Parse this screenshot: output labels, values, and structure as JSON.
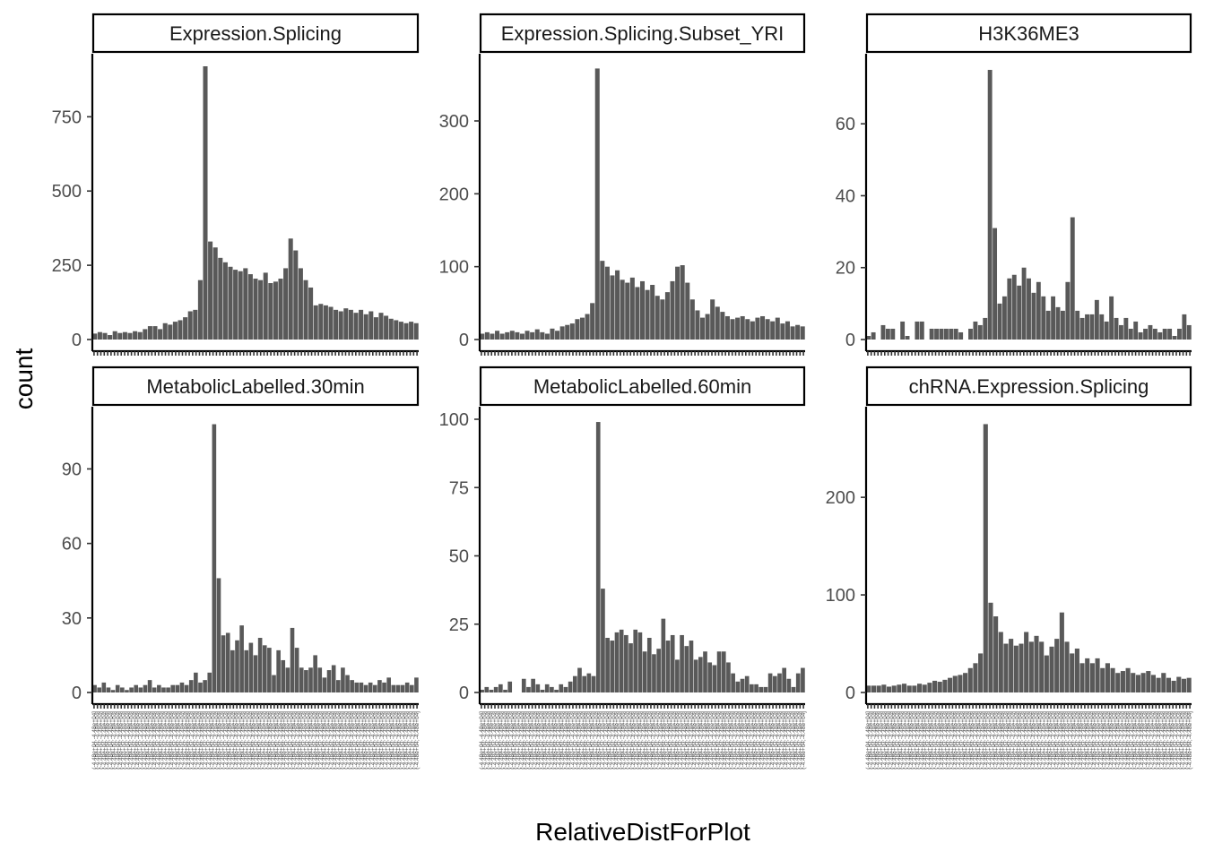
{
  "chart_data": {
    "type": "bar",
    "xlabel": "RelativeDistForPlot",
    "ylabel": "count",
    "bar_color": "#595959",
    "x_tick_labels": "(-4.48e+04,-4.48e+04]",
    "panels": [
      {
        "title": "Expression.Splicing",
        "ylim": [
          0,
          920
        ],
        "yticks": [
          0,
          250,
          500,
          750
        ],
        "tick_labels": [
          "0",
          "250",
          "500",
          "750"
        ],
        "values": [
          20,
          25,
          22,
          15,
          28,
          22,
          25,
          22,
          28,
          25,
          35,
          45,
          45,
          35,
          55,
          50,
          60,
          65,
          75,
          95,
          100,
          200,
          920,
          330,
          310,
          275,
          260,
          245,
          235,
          230,
          240,
          220,
          205,
          200,
          225,
          190,
          195,
          205,
          240,
          340,
          300,
          240,
          200,
          175,
          115,
          120,
          115,
          110,
          100,
          95,
          105,
          100,
          90,
          100,
          85,
          95,
          75,
          90,
          80,
          70,
          65,
          60,
          55,
          60,
          55
        ]
      },
      {
        "title": "Expression.Splicing.Subset_YRI",
        "ylim": [
          0,
          375
        ],
        "yticks": [
          0,
          100,
          200,
          300
        ],
        "tick_labels": [
          "0",
          "100",
          "200",
          "300"
        ],
        "values": [
          8,
          10,
          8,
          12,
          8,
          10,
          12,
          10,
          8,
          12,
          10,
          14,
          10,
          8,
          15,
          12,
          18,
          20,
          22,
          28,
          30,
          35,
          50,
          372,
          108,
          100,
          88,
          95,
          82,
          78,
          85,
          72,
          80,
          68,
          75,
          60,
          55,
          65,
          80,
          100,
          102,
          78,
          55,
          40,
          30,
          35,
          55,
          45,
          38,
          32,
          28,
          30,
          32,
          28,
          25,
          30,
          32,
          28,
          25,
          30,
          22,
          25,
          18,
          20,
          18
        ]
      },
      {
        "title": "H3K36ME3",
        "ylim": [
          0,
          76
        ],
        "yticks": [
          0,
          20,
          40,
          60
        ],
        "tick_labels": [
          "0",
          "20",
          "40",
          "60"
        ],
        "values": [
          1,
          2,
          0,
          4,
          3,
          3,
          0,
          5,
          1,
          0,
          5,
          5,
          0,
          3,
          3,
          3,
          3,
          3,
          3,
          2,
          0,
          3,
          5,
          4,
          6,
          75,
          31,
          10,
          12,
          17,
          18,
          15,
          20,
          17,
          13,
          16,
          12,
          8,
          12,
          9,
          8,
          16,
          34,
          8,
          6,
          7,
          7,
          11,
          7,
          5,
          12,
          6,
          4,
          6,
          3,
          5,
          2,
          3,
          4,
          3,
          2,
          3,
          3,
          1,
          3,
          7,
          4
        ]
      },
      {
        "title": "MetabolicLabelled.30min",
        "ylim": [
          0,
          110
        ],
        "yticks": [
          0,
          30,
          60,
          90
        ],
        "tick_labels": [
          "0",
          "30",
          "60",
          "90"
        ],
        "values": [
          3,
          2,
          4,
          2,
          1,
          3,
          2,
          1,
          2,
          3,
          2,
          3,
          5,
          2,
          3,
          2,
          2,
          3,
          3,
          4,
          3,
          5,
          8,
          4,
          5,
          8,
          108,
          46,
          23,
          24,
          17,
          21,
          27,
          17,
          20,
          15,
          22,
          19,
          18,
          7,
          17,
          13,
          10,
          26,
          18,
          10,
          9,
          10,
          15,
          10,
          6,
          9,
          11,
          5,
          10,
          7,
          5,
          4,
          4,
          3,
          4,
          3,
          5,
          4,
          6,
          3,
          3,
          3,
          4,
          3,
          6
        ]
      },
      {
        "title": "MetabolicLabelled.60min",
        "ylim": [
          0,
          100
        ],
        "yticks": [
          0,
          25,
          50,
          75,
          100
        ],
        "tick_labels": [
          "0",
          "25",
          "50",
          "75",
          "100"
        ],
        "values": [
          1,
          2,
          1,
          2,
          3,
          1,
          4,
          0,
          0,
          5,
          2,
          5,
          3,
          1,
          3,
          2,
          1,
          3,
          2,
          4,
          6,
          9,
          6,
          7,
          6,
          99,
          38,
          20,
          19,
          22,
          23,
          21,
          18,
          23,
          22,
          15,
          20,
          14,
          16,
          27,
          19,
          21,
          12,
          21,
          17,
          19,
          12,
          13,
          15,
          11,
          10,
          15,
          15,
          11,
          7,
          4,
          5,
          6,
          3,
          3,
          2,
          2,
          7,
          6,
          7,
          9,
          5,
          2,
          7,
          9
        ]
      },
      {
        "title": "chRNA.Expression.Splicing",
        "ylim": [
          0,
          280
        ],
        "yticks": [
          0,
          100,
          200
        ],
        "tick_labels": [
          "0",
          "100",
          "200"
        ],
        "values": [
          7,
          7,
          7,
          8,
          6,
          7,
          8,
          9,
          7,
          7,
          9,
          8,
          10,
          12,
          11,
          13,
          15,
          17,
          18,
          20,
          25,
          30,
          40,
          275,
          92,
          78,
          62,
          50,
          55,
          48,
          50,
          62,
          52,
          58,
          52,
          38,
          47,
          55,
          82,
          52,
          40,
          45,
          30,
          35,
          30,
          35,
          25,
          30,
          25,
          20,
          22,
          25,
          20,
          18,
          20,
          22,
          18,
          15,
          20,
          15,
          12,
          16,
          14,
          15
        ]
      }
    ]
  }
}
